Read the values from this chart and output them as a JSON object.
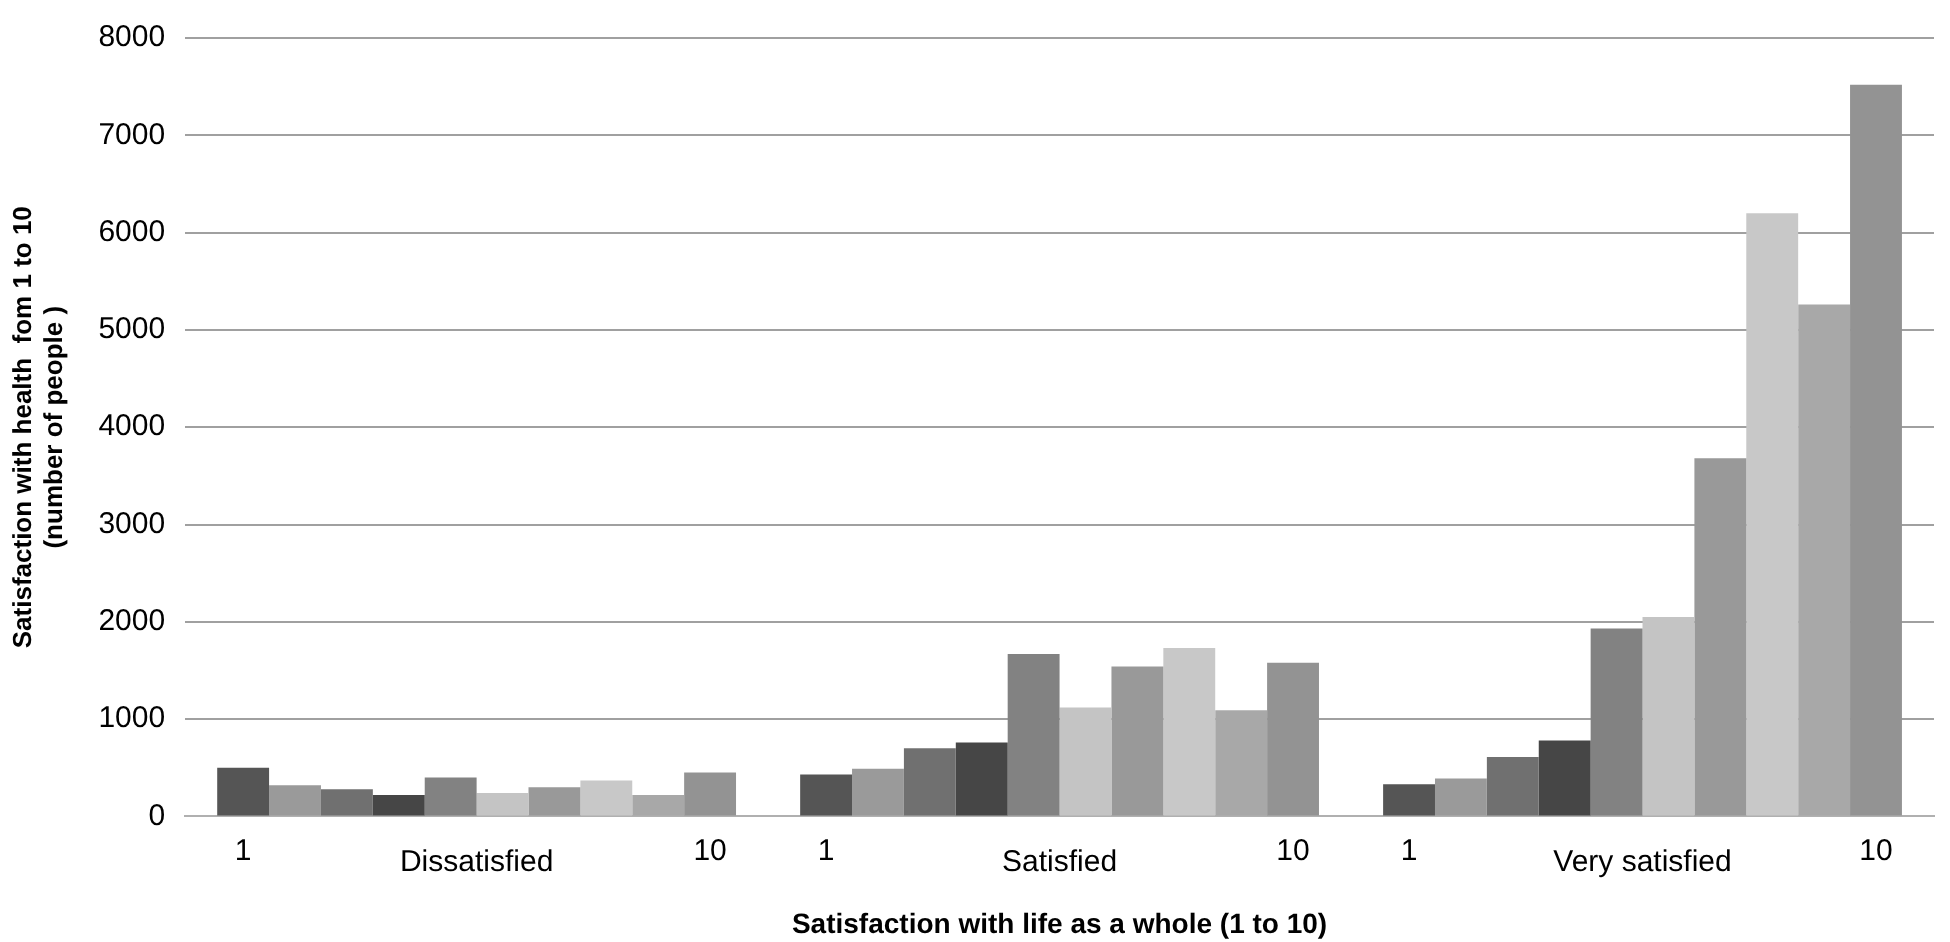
{
  "chart_data": {
    "type": "bar",
    "xlabel": "Satisfaction with life as a whole (1 to 10)",
    "ylabel": "Satisfaction with health  fom 1 to 10\n(number of people )",
    "categories": [
      "Dissatisfied",
      "Satisfied",
      "Very satisfied"
    ],
    "ylim": [
      0,
      8000
    ],
    "yticks": [
      0,
      1000,
      2000,
      3000,
      4000,
      5000,
      6000,
      7000,
      8000
    ],
    "grid": "y",
    "legend": false,
    "series": [
      {
        "name": "1",
        "color": "#555555",
        "values": [
          500,
          430,
          330
        ]
      },
      {
        "color": "#9a9a9a",
        "values": [
          320,
          490,
          390
        ]
      },
      {
        "color": "#707070",
        "values": [
          280,
          700,
          610
        ]
      },
      {
        "color": "#464646",
        "values": [
          220,
          760,
          780
        ]
      },
      {
        "color": "#828282",
        "values": [
          400,
          1670,
          1930
        ]
      },
      {
        "color": "#c4c4c4",
        "values": [
          240,
          1120,
          2050
        ]
      },
      {
        "color": "#999999",
        "values": [
          300,
          1540,
          3680
        ]
      },
      {
        "color": "#c8c8c8",
        "values": [
          370,
          1730,
          6200
        ]
      },
      {
        "color": "#a8a8a8",
        "values": [
          220,
          1090,
          5260
        ]
      },
      {
        "name": "10",
        "color": "#939393",
        "values": [
          450,
          1580,
          7520
        ]
      }
    ]
  }
}
